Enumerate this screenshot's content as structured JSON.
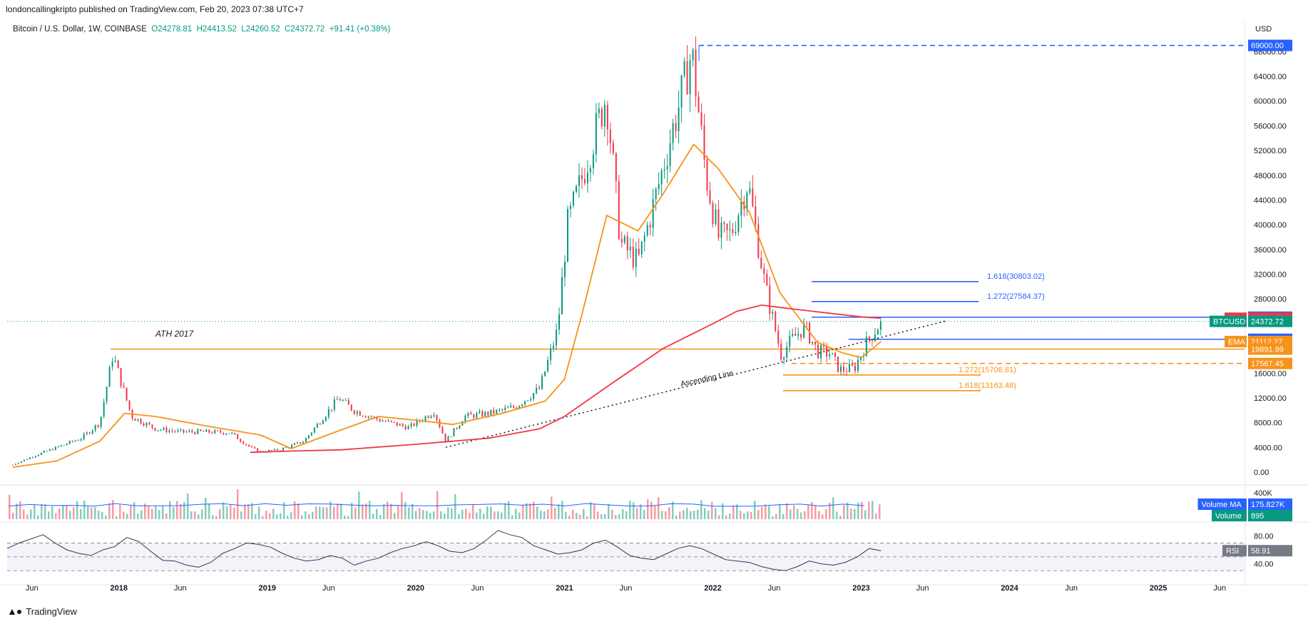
{
  "header": {
    "publisher": "londoncallingkripto published on TradingView.com, Feb 20, 2023 07:38 UTC+7",
    "symbol": "Bitcoin / U.S. Dollar, 1W, COINBASE",
    "open": "O24278.81",
    "high": "H24413.52",
    "low": "L24260.52",
    "close": "C24372.72",
    "change": "+91.41 (+0.38%)",
    "currency": "USD"
  },
  "brand": {
    "name": "TradingView",
    "logo": "tv-logo-icon"
  },
  "colors": {
    "up": "#089981",
    "down": "#f23645",
    "ema_long": "#f23645",
    "ema_short": "#f7931a",
    "fib_blue": "#2962ff",
    "fib_orange": "#f7931a",
    "rsi": "#7e57c2",
    "volume_ma": "#2962ff"
  },
  "chart_data": [
    {
      "type": "line",
      "title": "Bitcoin / U.S. Dollar, 1W, COINBASE",
      "x_ticks": [
        "Jun",
        "2018",
        "Jun",
        "2019",
        "Jun",
        "2020",
        "Jun",
        "2021",
        "Jun",
        "2022",
        "Jun",
        "2023",
        "Jun",
        "2024",
        "Jun",
        "2025",
        "Jun"
      ],
      "y_ticks": [
        "0.00",
        "4000.00",
        "8000.00",
        "12000.00",
        "16000.00",
        "20000.00",
        "24000.00",
        "28000.00",
        "32000.00",
        "36000.00",
        "40000.00",
        "44000.00",
        "48000.00",
        "52000.00",
        "56000.00",
        "60000.00",
        "64000.00",
        "68000.00"
      ],
      "ylim": [
        0,
        70000
      ],
      "xlim": [
        "2017-04-01",
        "2025-08-01"
      ],
      "grid": false,
      "series": [
        {
          "name": "BTCUSD",
          "style": "candles",
          "x": [
            "2017-04-15",
            "2017-06-01",
            "2017-08-01",
            "2017-10-01",
            "2017-11-15",
            "2017-12-17",
            "2018-02-01",
            "2018-04-01",
            "2018-06-01",
            "2018-08-01",
            "2018-10-01",
            "2018-11-25",
            "2018-12-15",
            "2019-02-01",
            "2019-04-01",
            "2019-06-26",
            "2019-08-01",
            "2019-10-01",
            "2019-12-15",
            "2020-02-15",
            "2020-03-15",
            "2020-05-01",
            "2020-07-01",
            "2020-09-01",
            "2020-11-01",
            "2020-12-15",
            "2021-01-08",
            "2021-02-15",
            "2021-04-14",
            "2021-05-19",
            "2021-07-01",
            "2021-08-15",
            "2021-09-07",
            "2021-10-20",
            "2021-11-10",
            "2021-12-15",
            "2022-01-15",
            "2022-02-15",
            "2022-03-28",
            "2022-05-10",
            "2022-06-18",
            "2022-07-15",
            "2022-08-15",
            "2022-09-15",
            "2022-10-15",
            "2022-11-10",
            "2022-12-15",
            "2023-01-15",
            "2023-02-19"
          ],
          "values": [
            1200,
            2500,
            4000,
            5500,
            8000,
            19000,
            9000,
            7000,
            6500,
            6500,
            6400,
            3800,
            3300,
            3600,
            5000,
            12000,
            10000,
            8500,
            7200,
            9800,
            5000,
            9000,
            9500,
            10500,
            13500,
            23000,
            40000,
            48000,
            61000,
            37000,
            34000,
            45000,
            51000,
            62000,
            68000,
            48000,
            38000,
            38500,
            47000,
            30000,
            19000,
            21500,
            23500,
            19500,
            19200,
            16500,
            16800,
            21000,
            24372.72
          ]
        },
        {
          "name": "EMA",
          "style": "line",
          "x": [
            "2017-04-15",
            "2017-08-01",
            "2017-11-15",
            "2018-01-15",
            "2018-04-01",
            "2018-08-01",
            "2018-12-15",
            "2019-03-01",
            "2019-07-01",
            "2019-10-01",
            "2020-01-15",
            "2020-04-01",
            "2020-08-01",
            "2020-11-15",
            "2021-01-01",
            "2021-02-15",
            "2021-04-15",
            "2021-07-01",
            "2021-09-01",
            "2021-11-15",
            "2022-01-15",
            "2022-04-01",
            "2022-06-15",
            "2022-09-15",
            "2022-11-15",
            "2023-01-01",
            "2023-02-19"
          ],
          "values": [
            800,
            1800,
            5000,
            9500,
            9000,
            7500,
            6000,
            3800,
            6800,
            9000,
            8300,
            7700,
            9500,
            11500,
            15000,
            26000,
            41500,
            39000,
            45000,
            53000,
            49000,
            42000,
            29000,
            21000,
            19300,
            18500,
            21112.27
          ]
        },
        {
          "name": "EMA",
          "style": "line",
          "x": [
            "2018-11-20",
            "2019-03-01",
            "2019-07-01",
            "2020-01-01",
            "2020-07-01",
            "2020-11-01",
            "2021-01-01",
            "2021-05-01",
            "2021-09-01",
            "2022-01-01",
            "2022-03-01",
            "2022-05-01",
            "2022-07-01",
            "2022-10-01",
            "2023-01-01",
            "2023-02-19"
          ],
          "values": [
            3200,
            3400,
            3600,
            4500,
            5500,
            7000,
            9000,
            14500,
            20000,
            24000,
            26000,
            27000,
            26500,
            25800,
            25100,
            24880.92
          ]
        },
        {
          "name": "Ascending Line",
          "style": "dotted",
          "x": [
            "2020-03-15",
            "2023-08-01"
          ],
          "values": [
            4000,
            24500
          ]
        }
      ],
      "levels": [
        {
          "label": "69000.00",
          "value": 69000,
          "style": "dashed",
          "color": "#2962ff"
        },
        {
          "label": "1.618(30803.02)",
          "value": 30803.02,
          "color": "#2962ff"
        },
        {
          "label": "1.272(27584.37)",
          "value": 27584.37,
          "color": "#2962ff"
        },
        {
          "label": "25054.10",
          "value": 25054.1,
          "color": "#2962ff"
        },
        {
          "label": "21478.80",
          "value": 21478.8,
          "color": "#2962ff"
        },
        {
          "label": "ATH 2017",
          "value": 19891.99,
          "color": "#f7931a"
        },
        {
          "label": "17567.45",
          "value": 17567.45,
          "style": "dashed",
          "color": "#f7931a"
        },
        {
          "label": "1.272(15706.81)",
          "value": 15706.81,
          "color": "#f7931a"
        },
        {
          "label": "1.618(13163.48)",
          "value": 13163.48,
          "color": "#f7931a"
        }
      ],
      "price_tags": [
        {
          "name": "",
          "value": "69000.00",
          "color": "#2962ff"
        },
        {
          "name": "",
          "value": "25054.10",
          "color": "#2962ff"
        },
        {
          "name": "EMA",
          "value": "24880.92",
          "color": "#f23645"
        },
        {
          "name": "BTCUSD",
          "value": "24372.72",
          "color": "#089981"
        },
        {
          "name": "",
          "value": "21478.80",
          "color": "#2962ff"
        },
        {
          "name": "EMA",
          "value": "21112.27",
          "color": "#f7931a"
        },
        {
          "name": "",
          "value": "19891.99",
          "color": "#f7931a"
        },
        {
          "name": "",
          "value": "17567.45",
          "color": "#f7931a"
        }
      ],
      "annotations": [
        "ATH 2017",
        "Ascending Line"
      ]
    },
    {
      "type": "bar",
      "title": "Volume",
      "y_ticks": [
        "400K"
      ],
      "series": [
        {
          "name": "Volume MA",
          "value": "175.827K"
        },
        {
          "name": "Volume",
          "value": "895"
        }
      ]
    },
    {
      "type": "line",
      "title": "RSI",
      "y_ticks": [
        "80.00",
        "40.00"
      ],
      "ylim": [
        20,
        90
      ],
      "series": [
        {
          "name": "RSI",
          "values": [
            62,
            70,
            76,
            82,
            70,
            60,
            55,
            52,
            60,
            65,
            78,
            72,
            58,
            45,
            44,
            38,
            35,
            42,
            55,
            62,
            70,
            68,
            64,
            55,
            48,
            44,
            46,
            52,
            48,
            38,
            44,
            48,
            56,
            62,
            66,
            72,
            66,
            58,
            56,
            62,
            74,
            88,
            82,
            78,
            66,
            60,
            54,
            56,
            60,
            70,
            74,
            64,
            52,
            48,
            46,
            54,
            62,
            66,
            62,
            54,
            46,
            44,
            42,
            36,
            32,
            30,
            36,
            44,
            40,
            38,
            42,
            50,
            62,
            58.91
          ]
        }
      ],
      "current": "58.91"
    }
  ]
}
